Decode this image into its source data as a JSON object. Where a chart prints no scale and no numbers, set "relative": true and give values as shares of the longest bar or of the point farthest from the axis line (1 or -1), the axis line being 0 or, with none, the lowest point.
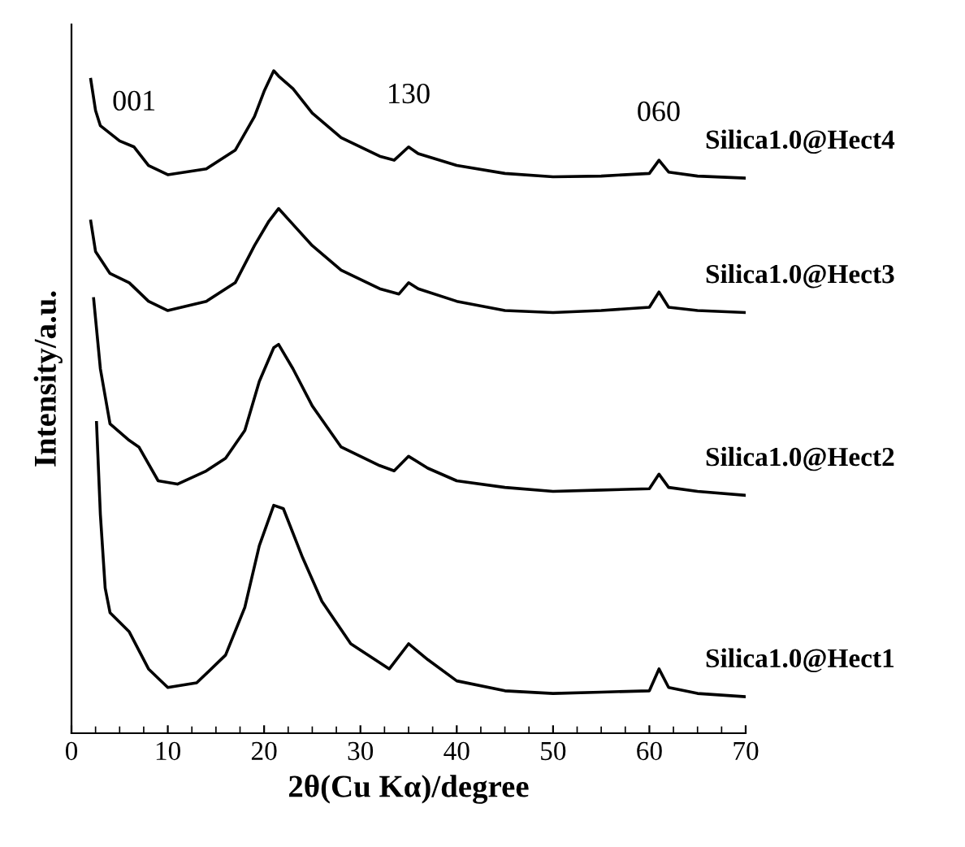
{
  "chart_data": {
    "type": "line",
    "relative": true,
    "xlabel": "2θ(Cu Kα)/degree",
    "ylabel": "Intensity/a.u.",
    "xlim": [
      0,
      70
    ],
    "xticks": [
      0,
      10,
      20,
      30,
      40,
      50,
      60,
      70
    ],
    "legend": false,
    "grid": false,
    "marker": "none",
    "line_style": "solid",
    "annotations": [
      "001",
      "130",
      "060"
    ],
    "series": [
      {
        "name": "Silica1.0@Hect4",
        "color": "#000000",
        "x": [
          2.0,
          2.5,
          3,
          5,
          6.5,
          8,
          10,
          14,
          17,
          19,
          20,
          21,
          21.5,
          23,
          25,
          28,
          32,
          33.5,
          35,
          36,
          40,
          45,
          50,
          55,
          60,
          61,
          62,
          65,
          70
        ],
        "values": [
          0.987,
          0.94,
          0.917,
          0.894,
          0.885,
          0.857,
          0.843,
          0.852,
          0.88,
          0.931,
          0.969,
          1.0,
          0.992,
          0.973,
          0.936,
          0.899,
          0.871,
          0.865,
          0.885,
          0.875,
          0.857,
          0.845,
          0.84,
          0.841,
          0.845,
          0.865,
          0.847,
          0.841,
          0.838
        ]
      },
      {
        "name": "Silica1.0@Hect3",
        "color": "#000000",
        "x": [
          2.0,
          2.5,
          4,
          6,
          8,
          10,
          14,
          17,
          19,
          20.5,
          21.5,
          23,
          25,
          28,
          32,
          34,
          35,
          36,
          40,
          45,
          50,
          55,
          60,
          61,
          62,
          65,
          70
        ],
        "values": [
          0.773,
          0.727,
          0.694,
          0.68,
          0.652,
          0.638,
          0.652,
          0.68,
          0.736,
          0.773,
          0.792,
          0.768,
          0.736,
          0.699,
          0.671,
          0.663,
          0.68,
          0.671,
          0.652,
          0.638,
          0.635,
          0.638,
          0.643,
          0.666,
          0.643,
          0.638,
          0.635
        ]
      },
      {
        "name": "Silica1.0@Hect2",
        "color": "#000000",
        "x": [
          2.3,
          3,
          4,
          6,
          7,
          9,
          11,
          14,
          16,
          18,
          19.5,
          21,
          21.5,
          23,
          25,
          28,
          32,
          33.5,
          35,
          37,
          40,
          45,
          50,
          55,
          60,
          61,
          62,
          65,
          70
        ],
        "values": [
          0.656,
          0.55,
          0.467,
          0.442,
          0.432,
          0.381,
          0.376,
          0.396,
          0.415,
          0.457,
          0.531,
          0.582,
          0.587,
          0.55,
          0.494,
          0.432,
          0.404,
          0.396,
          0.418,
          0.4,
          0.381,
          0.371,
          0.365,
          0.367,
          0.369,
          0.391,
          0.371,
          0.365,
          0.359
        ]
      },
      {
        "name": "Silica1.0@Hect1",
        "color": "#000000",
        "x": [
          2.6,
          3.0,
          3.5,
          4,
          6,
          8,
          10,
          13,
          16,
          18,
          19.5,
          21,
          22,
          24,
          26,
          29,
          33,
          35,
          37,
          40,
          45,
          50,
          55,
          60,
          61,
          62,
          65,
          70
        ],
        "values": [
          0.469,
          0.33,
          0.219,
          0.182,
          0.153,
          0.097,
          0.069,
          0.076,
          0.118,
          0.19,
          0.283,
          0.344,
          0.339,
          0.265,
          0.199,
          0.135,
          0.097,
          0.135,
          0.111,
          0.079,
          0.064,
          0.06,
          0.062,
          0.064,
          0.097,
          0.069,
          0.06,
          0.055
        ]
      }
    ]
  }
}
